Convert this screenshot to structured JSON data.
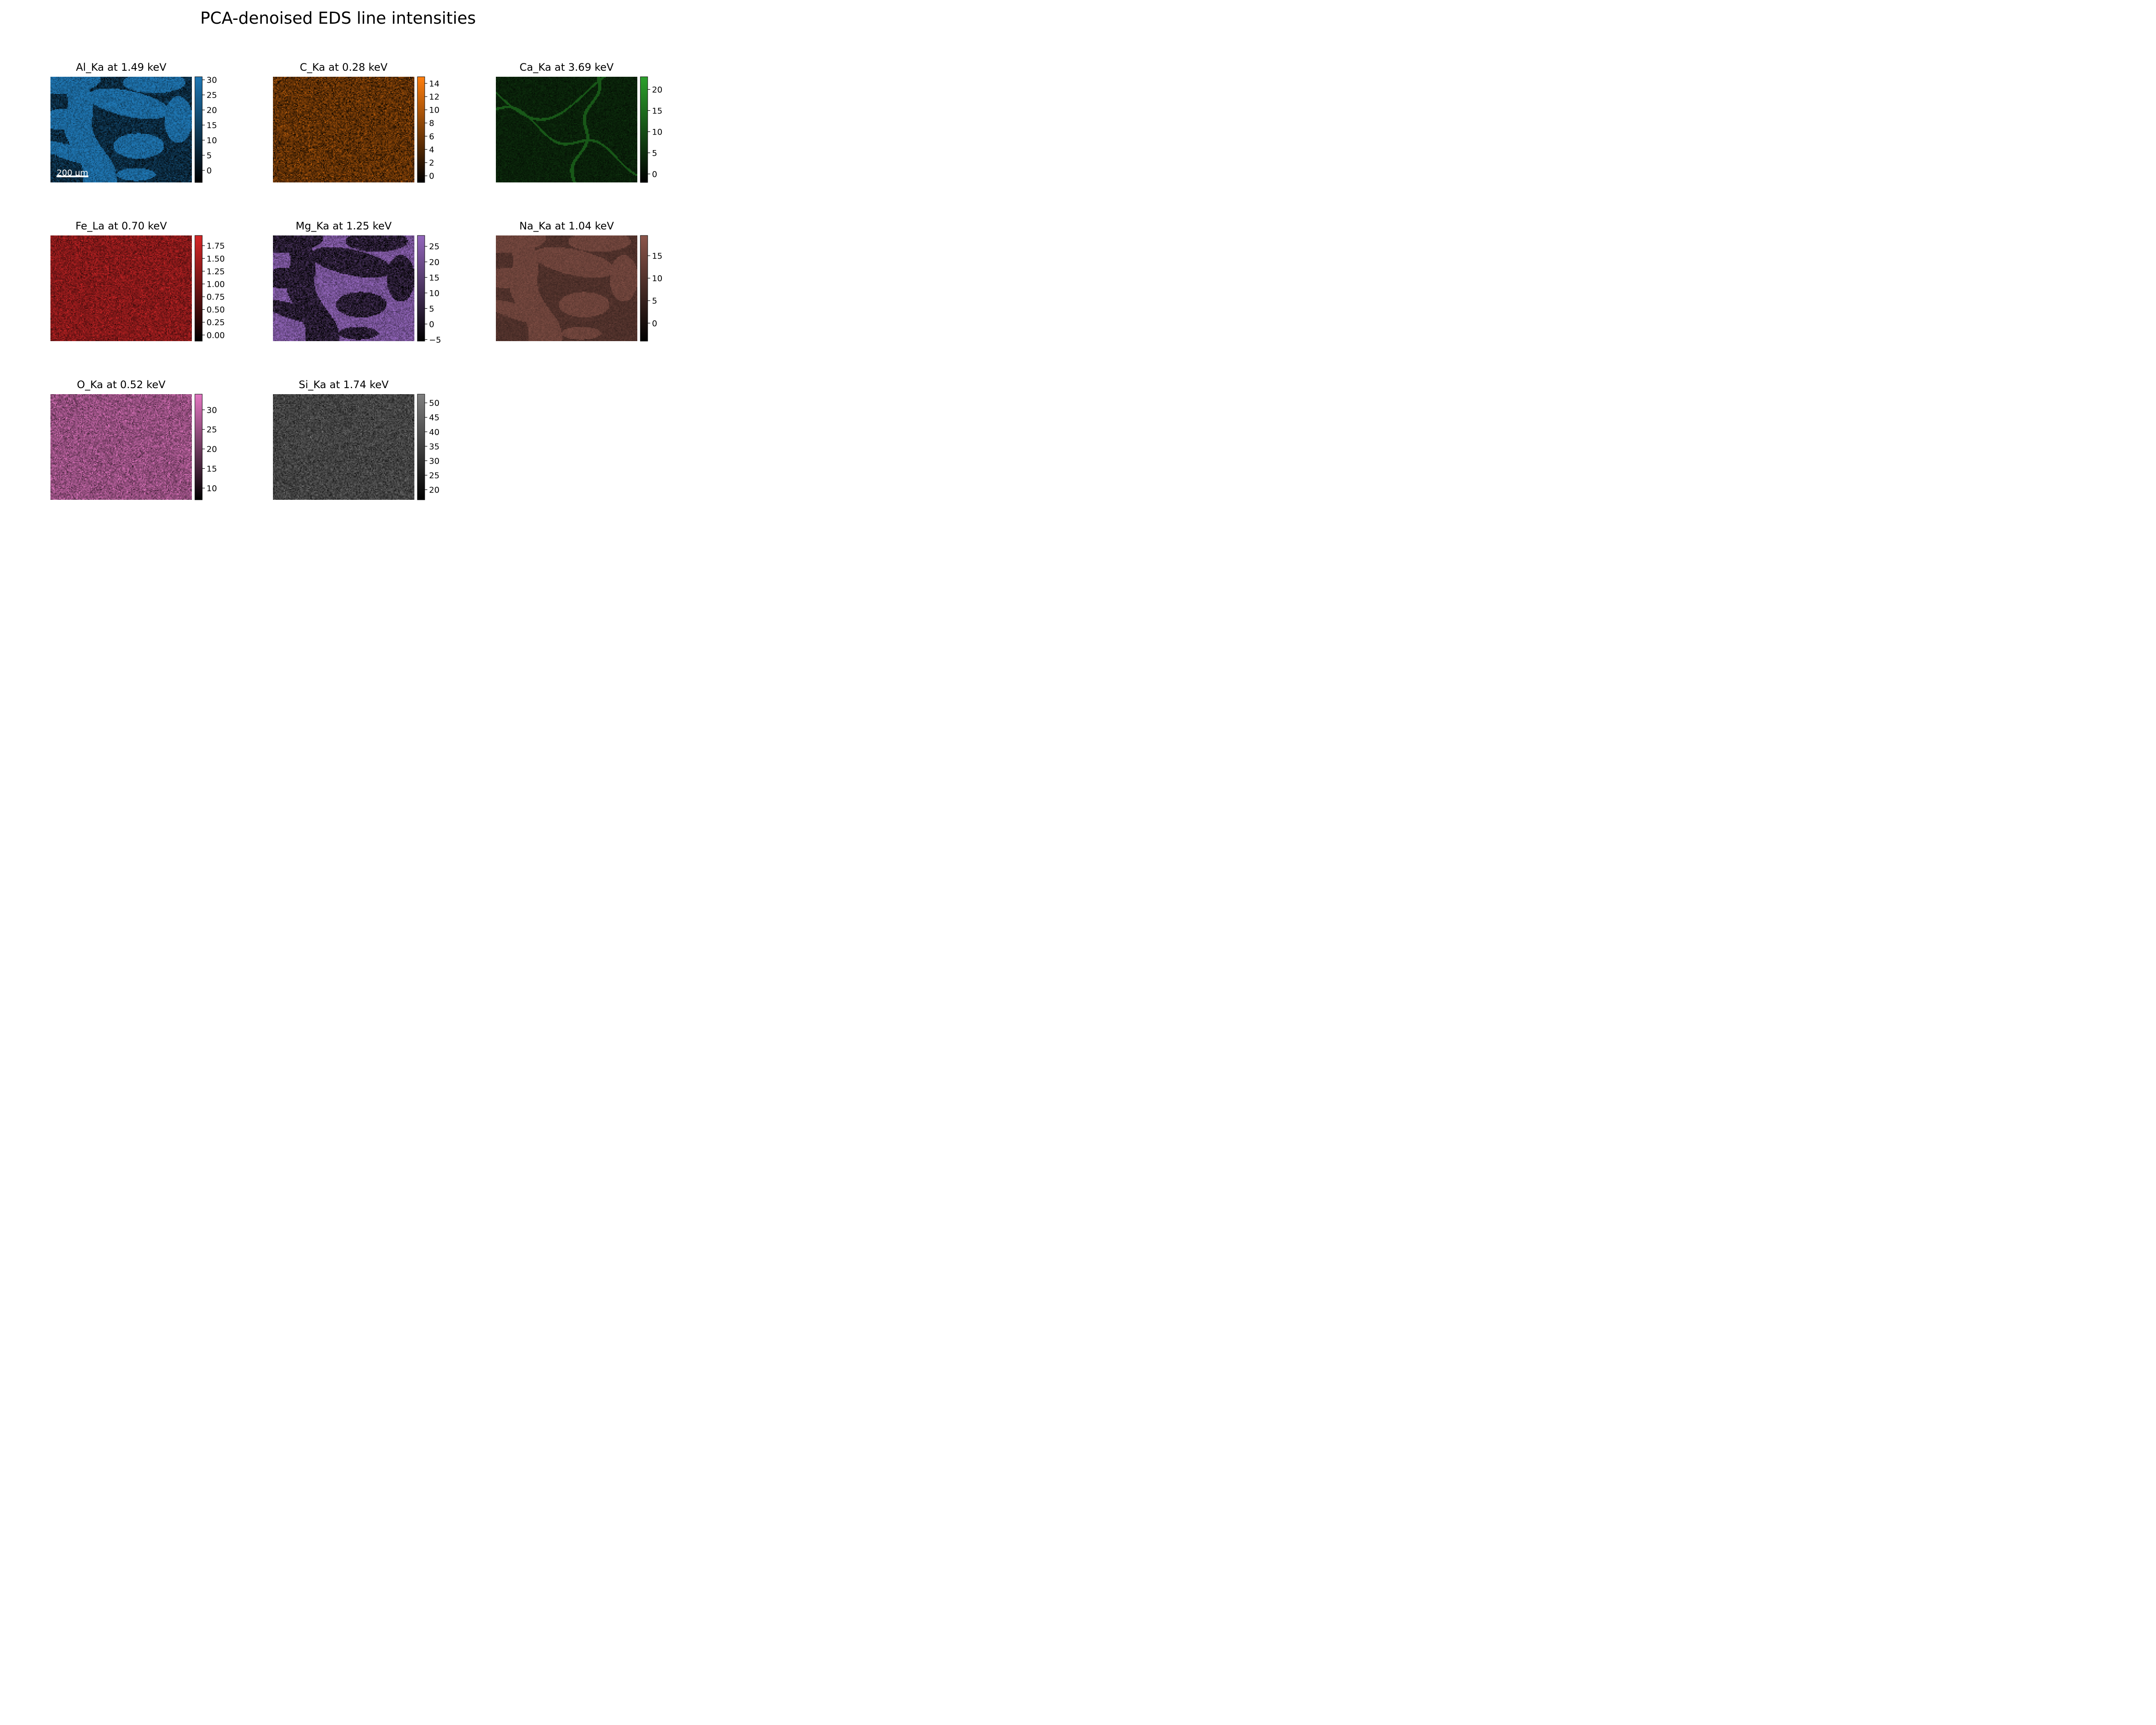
{
  "figure": {
    "title": "PCA-denoised EDS line intensities"
  },
  "scalebar": {
    "label": "200 μm",
    "length_um": 200
  },
  "chart_data": {
    "type": "heatmap",
    "title": "PCA-denoised EDS line intensities",
    "panels": [
      {
        "element": "Al_Ka",
        "energy_keV": 1.49,
        "title": "Al_Ka at 1.49 keV",
        "color": "#1f77b4",
        "clim": [
          -4,
          31
        ],
        "ticks": [
          0,
          5,
          10,
          15,
          20,
          25,
          30
        ],
        "tick_labels": [
          "0",
          "5",
          "10",
          "15",
          "20",
          "25",
          "30"
        ],
        "levels": {
          "low": 8,
          "high": 26
        },
        "pattern": "grains",
        "invert": false,
        "scalebar": true
      },
      {
        "element": "C_Ka",
        "energy_keV": 0.28,
        "title": "C_Ka at 0.28 keV",
        "color": "#ff7f0e",
        "clim": [
          -1,
          15
        ],
        "ticks": [
          0,
          2,
          4,
          6,
          8,
          10,
          12,
          14
        ],
        "tick_labels": [
          "0",
          "2",
          "4",
          "6",
          "8",
          "10",
          "12",
          "14"
        ],
        "levels": {
          "low": 4,
          "high": 6
        },
        "pattern": "noise",
        "invert": false,
        "scalebar": false
      },
      {
        "element": "Ca_Ka",
        "energy_keV": 3.69,
        "title": "Ca_Ka at 3.69 keV",
        "color": "#2ca02c",
        "clim": [
          -2,
          23
        ],
        "ticks": [
          0,
          5,
          10,
          15,
          20
        ],
        "tick_labels": [
          "0",
          "5",
          "10",
          "15",
          "20"
        ],
        "levels": {
          "low": 3,
          "high": 5
        },
        "pattern": "veins",
        "invert": false,
        "scalebar": false
      },
      {
        "element": "Fe_La",
        "energy_keV": 0.7,
        "title": "Fe_La at 0.70 keV",
        "color": "#d62728",
        "clim": [
          -0.12,
          1.95
        ],
        "ticks": [
          0,
          0.25,
          0.5,
          0.75,
          1.0,
          1.25,
          1.5,
          1.75
        ],
        "tick_labels": [
          "0.00",
          "0.25",
          "0.50",
          "0.75",
          "1.00",
          "1.25",
          "1.50",
          "1.75"
        ],
        "levels": {
          "low": 1.1,
          "high": 1.2
        },
        "pattern": "noise",
        "invert": false,
        "scalebar": false
      },
      {
        "element": "Mg_Ka",
        "energy_keV": 1.25,
        "title": "Mg_Ka at 1.25 keV",
        "color": "#9467bd",
        "clim": [
          -5.5,
          28.5
        ],
        "ticks": [
          -5,
          0,
          5,
          10,
          15,
          20,
          25
        ],
        "tick_labels": [
          "−5",
          "0",
          "5",
          "10",
          "15",
          "20",
          "25"
        ],
        "levels": {
          "low": 3,
          "high": 21
        },
        "pattern": "grains",
        "invert": true,
        "scalebar": false
      },
      {
        "element": "Na_Ka",
        "energy_keV": 1.04,
        "title": "Na_Ka at 1.04 keV",
        "color": "#8c564b",
        "clim": [
          -4,
          19.5
        ],
        "ticks": [
          0,
          5,
          10,
          15
        ],
        "tick_labels": [
          "0",
          "5",
          "10",
          "15"
        ],
        "levels": {
          "low": 9,
          "high": 14
        },
        "pattern": "grains",
        "invert": false,
        "scalebar": false
      },
      {
        "element": "O_Ka",
        "energy_keV": 0.52,
        "title": "O_Ka at 0.52 keV",
        "color": "#e377c2",
        "clim": [
          7,
          34
        ],
        "ticks": [
          10,
          15,
          20,
          25,
          30
        ],
        "tick_labels": [
          "10",
          "15",
          "20",
          "25",
          "30"
        ],
        "levels": {
          "low": 24,
          "high": 25
        },
        "pattern": "noise",
        "invert": false,
        "scalebar": false
      },
      {
        "element": "Si_Ka",
        "energy_keV": 1.74,
        "title": "Si_Ka at 1.74 keV",
        "color": "#7f7f7f",
        "clim": [
          16.5,
          53
        ],
        "ticks": [
          20,
          25,
          30,
          35,
          40,
          45,
          50
        ],
        "tick_labels": [
          "20",
          "25",
          "30",
          "35",
          "40",
          "45",
          "50"
        ],
        "levels": {
          "low": 35,
          "high": 36
        },
        "pattern": "noise",
        "invert": false,
        "scalebar": false
      }
    ]
  }
}
